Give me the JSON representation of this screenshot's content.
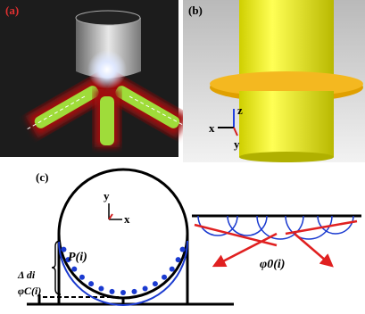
{
  "panels": [
    {
      "label": "(a)"
    },
    {
      "label": "(b)",
      "axes": {
        "z": "z",
        "x": "x",
        "y": "y"
      }
    },
    {
      "label": "(c)",
      "axes": {
        "y": "y",
        "x": "x"
      },
      "annotations": {
        "point": "P(i)",
        "delta": "Δ di",
        "phi_c": "φC(i)",
        "phi_0": "φ0(i)"
      }
    }
  ]
}
